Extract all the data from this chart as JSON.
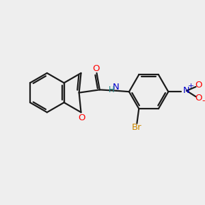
{
  "background_color": "#eeeeee",
  "bond_color": "#1a1a1a",
  "oxygen_color": "#ff0000",
  "nitrogen_color": "#0000cc",
  "bromine_color": "#cc8800",
  "hydrogen_color": "#228b8b",
  "figsize": [
    3.0,
    3.0
  ],
  "dpi": 100,
  "xlim": [
    0,
    10
  ],
  "ylim": [
    0,
    10
  ]
}
